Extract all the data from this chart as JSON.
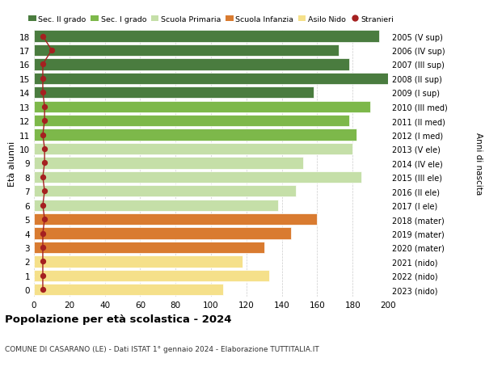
{
  "ages": [
    18,
    17,
    16,
    15,
    14,
    13,
    12,
    11,
    10,
    9,
    8,
    7,
    6,
    5,
    4,
    3,
    2,
    1,
    0
  ],
  "years": [
    "2005 (V sup)",
    "2006 (IV sup)",
    "2007 (III sup)",
    "2008 (II sup)",
    "2009 (I sup)",
    "2010 (III med)",
    "2011 (II med)",
    "2012 (I med)",
    "2013 (V ele)",
    "2014 (IV ele)",
    "2015 (III ele)",
    "2016 (II ele)",
    "2017 (I ele)",
    "2018 (mater)",
    "2019 (mater)",
    "2020 (mater)",
    "2021 (nido)",
    "2022 (nido)",
    "2023 (nido)"
  ],
  "bar_values": [
    195,
    172,
    178,
    200,
    158,
    190,
    178,
    182,
    180,
    152,
    185,
    148,
    138,
    160,
    145,
    130,
    118,
    133,
    107
  ],
  "stranieri_values": [
    5,
    10,
    5,
    5,
    5,
    6,
    6,
    5,
    6,
    6,
    5,
    6,
    5,
    6,
    5,
    5,
    5,
    5,
    5
  ],
  "bar_colors": [
    "#4a7c3f",
    "#4a7c3f",
    "#4a7c3f",
    "#4a7c3f",
    "#4a7c3f",
    "#7db84a",
    "#7db84a",
    "#7db84a",
    "#c5dfa8",
    "#c5dfa8",
    "#c5dfa8",
    "#c5dfa8",
    "#c5dfa8",
    "#d97b30",
    "#d97b30",
    "#d97b30",
    "#f5e08a",
    "#f5e08a",
    "#f5e08a"
  ],
  "legend_labels": [
    "Sec. II grado",
    "Sec. I grado",
    "Scuola Primaria",
    "Scuola Infanzia",
    "Asilo Nido",
    "Stranieri"
  ],
  "legend_colors": [
    "#4a7c3f",
    "#7db84a",
    "#c5dfa8",
    "#d97b30",
    "#f5e08a",
    "#c0392b"
  ],
  "stranieri_color": "#a52020",
  "title": "Popolazione per età scolastica - 2024",
  "subtitle": "COMUNE DI CASARANO (LE) - Dati ISTAT 1° gennaio 2024 - Elaborazione TUTTITALIA.IT",
  "xlabel_right": "Anni di nascita",
  "ylabel": "Età alunni",
  "xlim": [
    0,
    200
  ],
  "xticks": [
    0,
    20,
    40,
    60,
    80,
    100,
    120,
    140,
    160,
    180,
    200
  ],
  "background_color": "#ffffff",
  "grid_color": "#cccccc"
}
